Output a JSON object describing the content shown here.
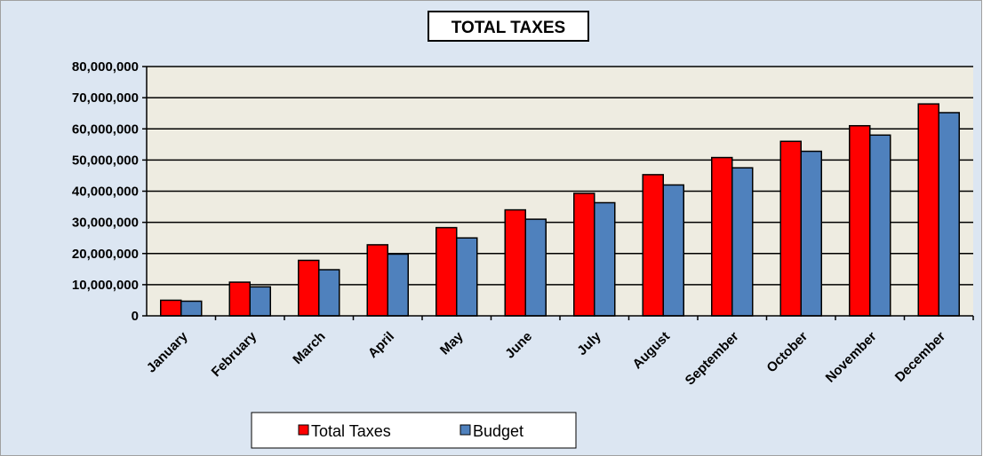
{
  "chart_data": {
    "type": "bar",
    "title": "TOTAL TAXES",
    "xlabel": "",
    "ylabel": "",
    "categories": [
      "January",
      "February",
      "March",
      "April",
      "May",
      "June",
      "July",
      "August",
      "September",
      "October",
      "November",
      "December"
    ],
    "series": [
      {
        "name": "Total Taxes",
        "color": "#ff0000",
        "values": [
          5000000,
          10800000,
          17800000,
          22800000,
          28300000,
          34000000,
          39300000,
          45300000,
          50800000,
          56000000,
          61000000,
          68000000
        ]
      },
      {
        "name": "Budget",
        "color": "#4f81bd",
        "values": [
          4700000,
          9300000,
          14800000,
          19800000,
          25000000,
          31000000,
          36300000,
          42000000,
          47500000,
          52800000,
          58000000,
          65200000
        ]
      }
    ],
    "ylim": [
      0,
      80000000
    ],
    "y_ticks": [
      "0",
      "10,000,000",
      "20,000,000",
      "30,000,000",
      "40,000,000",
      "50,000,000",
      "60,000,000",
      "70,000,000",
      "80,000,000"
    ],
    "y_tick_values": [
      0,
      10000000,
      20000000,
      30000000,
      40000000,
      50000000,
      60000000,
      70000000,
      80000000
    ],
    "grid": true,
    "legend_position": "bottom-center",
    "background_color": "#dce6f2",
    "plot_background_color": "#eeece1"
  }
}
